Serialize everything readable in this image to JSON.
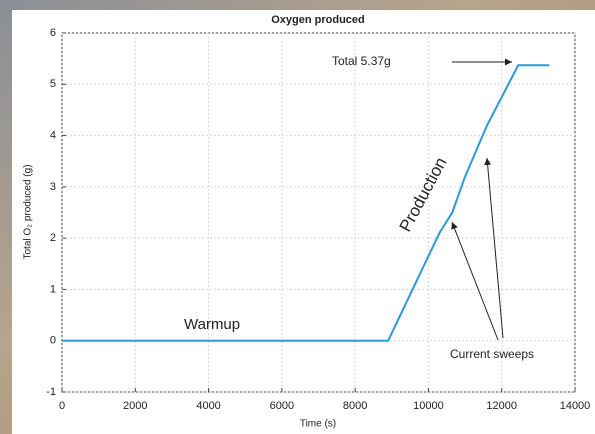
{
  "chart_data": {
    "type": "line",
    "title": "Oxygen produced",
    "xlabel": "Time (s)",
    "ylabel": "Total O₂ produced (g)",
    "x": [
      0,
      8900,
      9500,
      10300,
      10650,
      11000,
      11600,
      12450,
      13300
    ],
    "series": [
      {
        "name": "Oxygen produced",
        "color": "#2b9bd8",
        "values": [
          0,
          0,
          0.9,
          2.1,
          2.5,
          3.2,
          4.2,
          5.37,
          5.37
        ]
      }
    ],
    "xlim": [
      0,
      14000
    ],
    "xticks": [
      0,
      2000,
      4000,
      6000,
      8000,
      10000,
      12000,
      14000
    ],
    "ylim": [
      -1,
      6
    ],
    "yticks": [
      -1,
      0,
      1,
      2,
      3,
      4,
      5,
      6
    ],
    "grid": true,
    "annotations": [
      "Total 5.37g",
      "Production",
      "Warmup",
      "Current sweeps"
    ]
  }
}
